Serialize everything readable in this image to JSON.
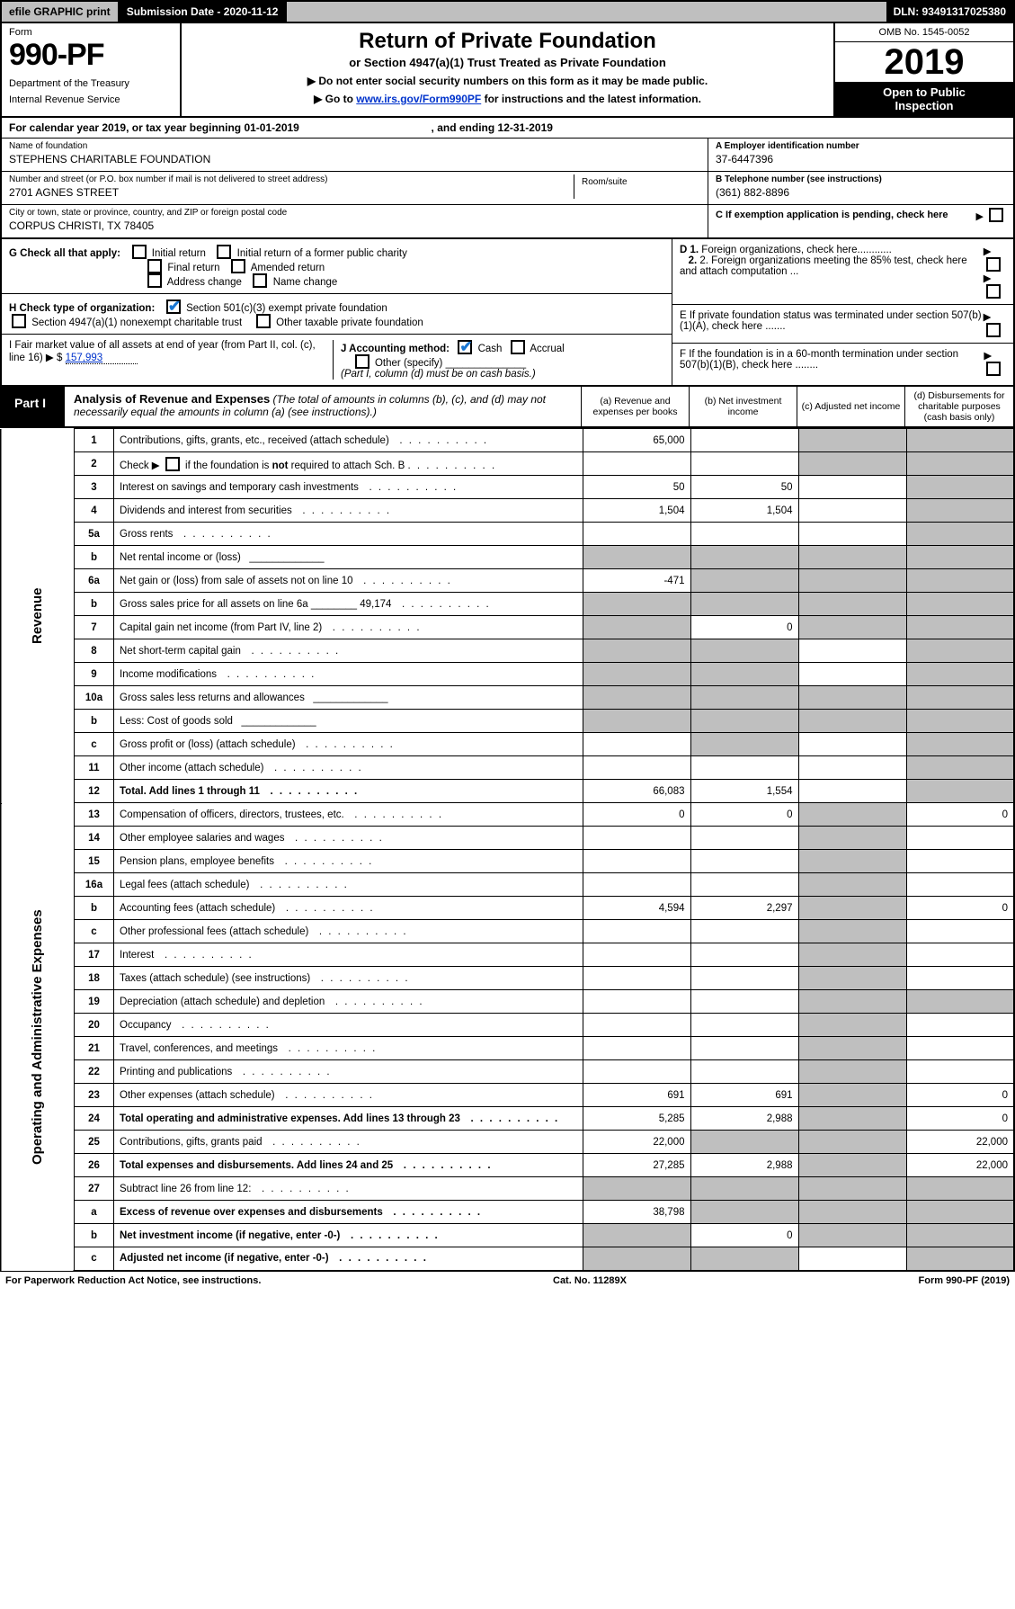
{
  "colors": {
    "accent": "#0033cc",
    "bar": "#bfbfbf",
    "ink": "#000000",
    "check": "#1976d2"
  },
  "topbar": {
    "efile": "efile GRAPHIC print",
    "submission_label": "Submission Date - 2020-11-12",
    "dln_label": "DLN: 93491317025380"
  },
  "header": {
    "form_label": "Form",
    "form_no": "990-PF",
    "dept1": "Department of the Treasury",
    "dept2": "Internal Revenue Service",
    "title": "Return of Private Foundation",
    "subtitle": "or Section 4947(a)(1) Trust Treated as Private Foundation",
    "note1": "▶ Do not enter social security numbers on this form as it may be made public.",
    "note2_pre": "▶ Go to ",
    "note2_link": "www.irs.gov/Form990PF",
    "note2_post": " for instructions and the latest information.",
    "omb": "OMB No. 1545-0052",
    "year": "2019",
    "inspect1": "Open to Public",
    "inspect2": "Inspection"
  },
  "calrow": {
    "pre": "For calendar year 2019, or tax year beginning ",
    "begin": "01-01-2019",
    "mid": " , and ending ",
    "end": "12-31-2019"
  },
  "entity": {
    "name_lbl": "Name of foundation",
    "name_val": "STEPHENS CHARITABLE FOUNDATION",
    "addr_lbl": "Number and street (or P.O. box number if mail is not delivered to street address)",
    "addr_val": "2701 AGNES STREET",
    "room_lbl": "Room/suite",
    "city_lbl": "City or town, state or province, country, and ZIP or foreign postal code",
    "city_val": "CORPUS CHRISTI, TX  78405",
    "ein_lbl": "A Employer identification number",
    "ein_val": "37-6447396",
    "tel_lbl": "B Telephone number (see instructions)",
    "tel_val": "(361) 882-8896",
    "c_lbl": "C  If exemption application is pending, check here"
  },
  "checks": {
    "g_lbl": "G Check all that apply:",
    "g_opts": [
      "Initial return",
      "Initial return of a former public charity",
      "Final return",
      "Amended return",
      "Address change",
      "Name change"
    ],
    "h_lbl": "H Check type of organization:",
    "h1": "Section 501(c)(3) exempt private foundation",
    "h2": "Section 4947(a)(1) nonexempt charitable trust",
    "h3": "Other taxable private foundation",
    "i_lbl": "I Fair market value of all assets at end of year (from Part II, col. (c), line 16) ▶ $",
    "i_val": "157,993",
    "j_lbl": "J Accounting method:",
    "j1": "Cash",
    "j2": "Accrual",
    "j3": "Other (specify)",
    "j_note": "(Part I, column (d) must be on cash basis.)",
    "d_lbl": "D 1. Foreign organizations, check here............",
    "d2": "2. Foreign organizations meeting the 85% test, check here and attach computation ...",
    "e_lbl": "E  If private foundation status was terminated under section 507(b)(1)(A), check here .......",
    "f_lbl": "F  If the foundation is in a 60-month termination under section 507(b)(1)(B), check here ........"
  },
  "part1": {
    "tab": "Part I",
    "title": "Analysis of Revenue and Expenses",
    "title_note": "(The total of amounts in columns (b), (c), and (d) may not necessarily equal the amounts in column (a) (see instructions).)",
    "col_a": "(a)   Revenue and expenses per books",
    "col_b": "(b)   Net investment income",
    "col_c": "(c)   Adjusted net income",
    "col_d": "(d)   Disbursements for charitable purposes (cash basis only)",
    "vlabel_rev": "Revenue",
    "vlabel_exp": "Operating and Administrative Expenses"
  },
  "rows": [
    {
      "n": "1",
      "d": "Contributions, gifts, grants, etc., received (attach schedule)",
      "a": "65,000",
      "b": "",
      "cGrey": true,
      "dGrey": true
    },
    {
      "n": "2",
      "d": "Check ▶ ☐ if the foundation is not required to attach Sch. B",
      "a": "",
      "b": "",
      "cGrey": true,
      "dGrey": true,
      "descHtml": true
    },
    {
      "n": "3",
      "d": "Interest on savings and temporary cash investments",
      "a": "50",
      "b": "50",
      "cGrey": false,
      "dGrey": true
    },
    {
      "n": "4",
      "d": "Dividends and interest from securities",
      "a": "1,504",
      "b": "1,504",
      "cGrey": false,
      "dGrey": true
    },
    {
      "n": "5a",
      "d": "Gross rents",
      "a": "",
      "b": "",
      "cGrey": false,
      "dGrey": true
    },
    {
      "n": "b",
      "d": "Net rental income or (loss)",
      "a": "",
      "aGrey": true,
      "b": "",
      "bGrey": true,
      "cGrey": true,
      "dGrey": true,
      "inline": true
    },
    {
      "n": "6a",
      "d": "Net gain or (loss) from sale of assets not on line 10",
      "a": "-471",
      "b": "",
      "bGrey": true,
      "cGrey": true,
      "dGrey": true
    },
    {
      "n": "b",
      "d": "Gross sales price for all assets on line 6a ________ 49,174",
      "a": "",
      "aGrey": true,
      "bGrey": true,
      "cGrey": true,
      "dGrey": true
    },
    {
      "n": "7",
      "d": "Capital gain net income (from Part IV, line 2)",
      "a": "",
      "aGrey": true,
      "b": "0",
      "cGrey": true,
      "dGrey": true
    },
    {
      "n": "8",
      "d": "Net short-term capital gain",
      "a": "",
      "aGrey": true,
      "bGrey": true,
      "cGrey": false,
      "dGrey": true
    },
    {
      "n": "9",
      "d": "Income modifications",
      "a": "",
      "aGrey": true,
      "bGrey": true,
      "cGrey": false,
      "dGrey": true
    },
    {
      "n": "10a",
      "d": "Gross sales less returns and allowances",
      "a": "",
      "aGrey": true,
      "bGrey": true,
      "cGrey": true,
      "dGrey": true,
      "inline": true
    },
    {
      "n": "b",
      "d": "Less: Cost of goods sold",
      "a": "",
      "aGrey": true,
      "bGrey": true,
      "cGrey": true,
      "dGrey": true,
      "inline": true
    },
    {
      "n": "c",
      "d": "Gross profit or (loss) (attach schedule)",
      "a": "",
      "b": "",
      "bGrey": true,
      "cGrey": false,
      "dGrey": true
    },
    {
      "n": "11",
      "d": "Other income (attach schedule)",
      "a": "",
      "b": "",
      "cGrey": false,
      "dGrey": true
    },
    {
      "n": "12",
      "d": "Total. Add lines 1 through 11",
      "bold": true,
      "a": "66,083",
      "b": "1,554",
      "cGrey": false,
      "dGrey": true
    },
    {
      "n": "13",
      "d": "Compensation of officers, directors, trustees, etc.",
      "a": "0",
      "b": "0",
      "c": "",
      "cGrey": true,
      "dv": "0"
    },
    {
      "n": "14",
      "d": "Other employee salaries and wages",
      "a": "",
      "b": "",
      "cGrey": true,
      "dv": ""
    },
    {
      "n": "15",
      "d": "Pension plans, employee benefits",
      "a": "",
      "b": "",
      "cGrey": true,
      "dv": ""
    },
    {
      "n": "16a",
      "d": "Legal fees (attach schedule)",
      "a": "",
      "b": "",
      "cGrey": true,
      "dv": ""
    },
    {
      "n": "b",
      "d": "Accounting fees (attach schedule)",
      "a": "4,594",
      "b": "2,297",
      "cGrey": true,
      "dv": "0"
    },
    {
      "n": "c",
      "d": "Other professional fees (attach schedule)",
      "a": "",
      "b": "",
      "cGrey": true,
      "dv": ""
    },
    {
      "n": "17",
      "d": "Interest",
      "a": "",
      "b": "",
      "cGrey": true,
      "dv": ""
    },
    {
      "n": "18",
      "d": "Taxes (attach schedule) (see instructions)",
      "a": "",
      "b": "",
      "cGrey": true,
      "dv": ""
    },
    {
      "n": "19",
      "d": "Depreciation (attach schedule) and depletion",
      "a": "",
      "b": "",
      "cGrey": true,
      "dGrey": true
    },
    {
      "n": "20",
      "d": "Occupancy",
      "a": "",
      "b": "",
      "cGrey": true,
      "dv": ""
    },
    {
      "n": "21",
      "d": "Travel, conferences, and meetings",
      "a": "",
      "b": "",
      "cGrey": true,
      "dv": ""
    },
    {
      "n": "22",
      "d": "Printing and publications",
      "a": "",
      "b": "",
      "cGrey": true,
      "dv": ""
    },
    {
      "n": "23",
      "d": "Other expenses (attach schedule)",
      "a": "691",
      "b": "691",
      "cGrey": true,
      "dv": "0"
    },
    {
      "n": "24",
      "d": "Total operating and administrative expenses. Add lines 13 through 23",
      "bold": true,
      "a": "5,285",
      "b": "2,988",
      "cGrey": true,
      "dv": "0"
    },
    {
      "n": "25",
      "d": "Contributions, gifts, grants paid",
      "a": "22,000",
      "bGrey": true,
      "cGrey": true,
      "dv": "22,000"
    },
    {
      "n": "26",
      "d": "Total expenses and disbursements. Add lines 24 and 25",
      "bold": true,
      "a": "27,285",
      "b": "2,988",
      "cGrey": true,
      "dv": "22,000"
    },
    {
      "n": "27",
      "d": "Subtract line 26 from line 12:",
      "a": "",
      "aGrey": true,
      "bGrey": true,
      "cGrey": true,
      "dGrey": true
    },
    {
      "n": "a",
      "d": "Excess of revenue over expenses and disbursements",
      "bold": true,
      "a": "38,798",
      "bGrey": true,
      "cGrey": true,
      "dGrey": true
    },
    {
      "n": "b",
      "d": "Net investment income (if negative, enter -0-)",
      "bold": true,
      "aGrey": true,
      "b": "0",
      "cGrey": true,
      "dGrey": true
    },
    {
      "n": "c",
      "d": "Adjusted net income (if negative, enter -0-)",
      "bold": true,
      "aGrey": true,
      "bGrey": true,
      "c": "",
      "dGrey": true
    }
  ],
  "footer": {
    "left": "For Paperwork Reduction Act Notice, see instructions.",
    "mid": "Cat. No. 11289X",
    "right": "Form 990-PF (2019)"
  }
}
